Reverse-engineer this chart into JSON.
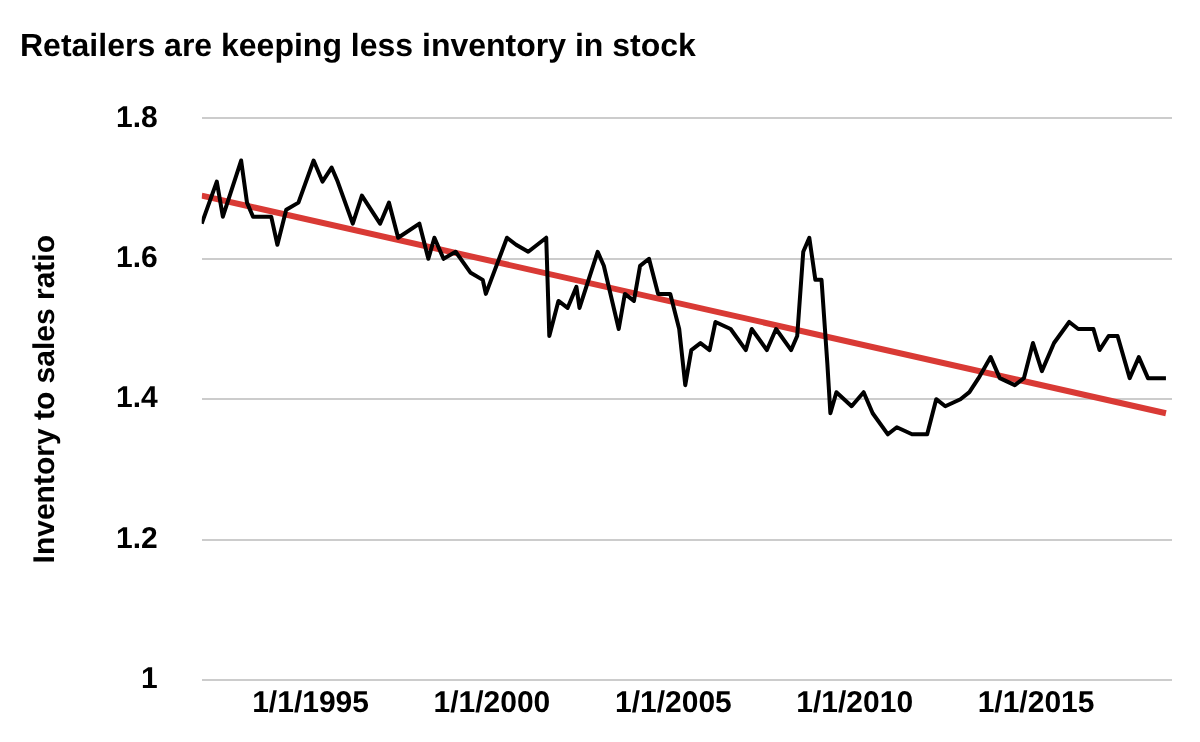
{
  "chart_data": {
    "type": "line",
    "title": "Retailers are keeping less inventory in stock",
    "ylabel": "Inventory to sales ratio",
    "xlim": [
      "1992-01",
      "2018-10"
    ],
    "ylim": [
      1,
      1.8
    ],
    "yticks": [
      1,
      1.2,
      1.4,
      1.6,
      1.8
    ],
    "xticks": [
      {
        "value": "1995-01-01",
        "label": "1/1/1995"
      },
      {
        "value": "2000-01-01",
        "label": "1/1/2000"
      },
      {
        "value": "2005-01-01",
        "label": "1/1/2005"
      },
      {
        "value": "2010-01-01",
        "label": "1/1/2010"
      },
      {
        "value": "2015-01-01",
        "label": "1/1/2015"
      }
    ],
    "grid": "y",
    "legend": false,
    "marker": "none",
    "line_style": "solid",
    "series": [
      {
        "color": "#000000",
        "x": [
          "1992-01",
          "1992-06",
          "1992-08",
          "1993-02",
          "1993-04",
          "1993-06",
          "1993-12",
          "1994-02",
          "1994-05",
          "1994-09",
          "1995-02",
          "1995-05",
          "1995-08",
          "1995-10",
          "1996-03",
          "1996-06",
          "1996-12",
          "1997-03",
          "1997-06",
          "1998-01",
          "1998-04",
          "1998-06",
          "1998-09",
          "1999-01",
          "1999-06",
          "1999-10",
          "1999-11",
          "2000-06",
          "2000-09",
          "2001-01",
          "2001-07",
          "2001-08",
          "2001-11",
          "2002-02",
          "2002-05",
          "2002-06",
          "2002-12",
          "2003-02",
          "2003-07",
          "2003-09",
          "2003-12",
          "2004-02",
          "2004-05",
          "2004-08",
          "2004-12",
          "2005-03",
          "2005-05",
          "2005-07",
          "2005-10",
          "2006-01",
          "2006-03",
          "2006-08",
          "2007-01",
          "2007-03",
          "2007-08",
          "2007-11",
          "2008-04",
          "2008-06",
          "2008-08",
          "2008-10",
          "2008-12",
          "2009-02",
          "2009-04",
          "2009-05",
          "2009-07",
          "2009-12",
          "2010-04",
          "2010-07",
          "2010-12",
          "2011-03",
          "2011-08",
          "2012-01",
          "2012-04",
          "2012-07",
          "2012-12",
          "2013-03",
          "2013-06",
          "2013-10",
          "2014-01",
          "2014-06",
          "2014-09",
          "2014-12",
          "2015-03",
          "2015-07",
          "2015-12",
          "2016-03",
          "2016-08",
          "2016-10",
          "2017-01",
          "2017-04",
          "2017-08",
          "2017-11",
          "2018-02",
          "2018-08"
        ],
        "values": [
          1.65,
          1.71,
          1.66,
          1.74,
          1.68,
          1.66,
          1.66,
          1.62,
          1.67,
          1.68,
          1.74,
          1.71,
          1.73,
          1.71,
          1.65,
          1.69,
          1.65,
          1.68,
          1.63,
          1.65,
          1.6,
          1.63,
          1.6,
          1.61,
          1.58,
          1.57,
          1.55,
          1.63,
          1.62,
          1.61,
          1.63,
          1.49,
          1.54,
          1.53,
          1.56,
          1.53,
          1.61,
          1.59,
          1.5,
          1.55,
          1.54,
          1.59,
          1.6,
          1.55,
          1.55,
          1.5,
          1.42,
          1.47,
          1.48,
          1.47,
          1.51,
          1.5,
          1.47,
          1.5,
          1.47,
          1.5,
          1.47,
          1.49,
          1.61,
          1.63,
          1.57,
          1.57,
          1.45,
          1.38,
          1.41,
          1.39,
          1.41,
          1.38,
          1.35,
          1.36,
          1.35,
          1.35,
          1.4,
          1.39,
          1.4,
          1.41,
          1.43,
          1.46,
          1.43,
          1.42,
          1.43,
          1.48,
          1.44,
          1.48,
          1.51,
          1.5,
          1.5,
          1.47,
          1.49,
          1.49,
          1.43,
          1.46,
          1.43,
          1.43
        ]
      },
      {
        "type": "line",
        "color": "#d93a35",
        "x": [
          "1992-01",
          "2018-08"
        ],
        "values": [
          1.69,
          1.38
        ]
      }
    ]
  }
}
